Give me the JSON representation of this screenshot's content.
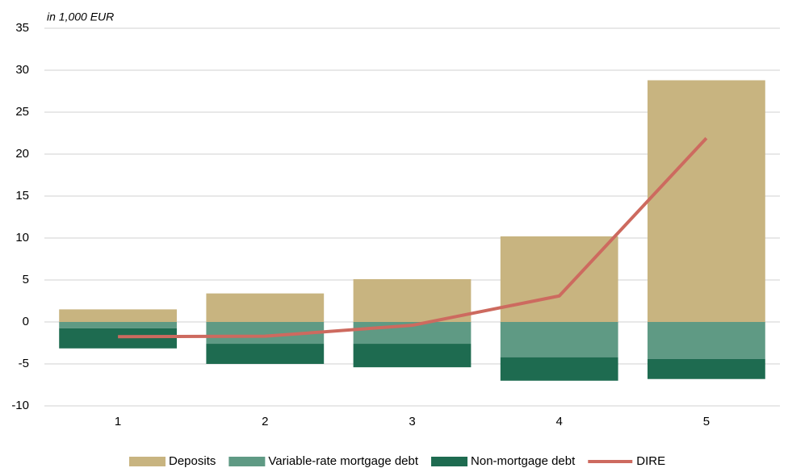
{
  "chart_data": {
    "type": "bar",
    "annotation": "in 1,000 EUR",
    "categories": [
      "1",
      "2",
      "3",
      "4",
      "5"
    ],
    "series": [
      {
        "name": "Deposits",
        "color": "#c8b480",
        "values": [
          1.5,
          3.4,
          5.1,
          10.2,
          28.8
        ]
      },
      {
        "name": "Variable-rate mortgage debt",
        "color": "#5f9a84",
        "values": [
          -0.75,
          -2.6,
          -2.6,
          -4.2,
          -4.4
        ]
      },
      {
        "name": "Non-mortgage debt",
        "color": "#1e6b50",
        "values": [
          -2.4,
          -2.4,
          -2.8,
          -2.8,
          -2.4
        ]
      },
      {
        "name": "DIRE",
        "type": "line",
        "color": "#cd6a5f",
        "values": [
          -1.75,
          -1.7,
          -0.4,
          3.1,
          21.9
        ]
      }
    ],
    "ylim": [
      -10,
      35
    ],
    "yticks": [
      -10,
      -5,
      0,
      5,
      10,
      15,
      20,
      25,
      30,
      35
    ],
    "grid": true
  }
}
